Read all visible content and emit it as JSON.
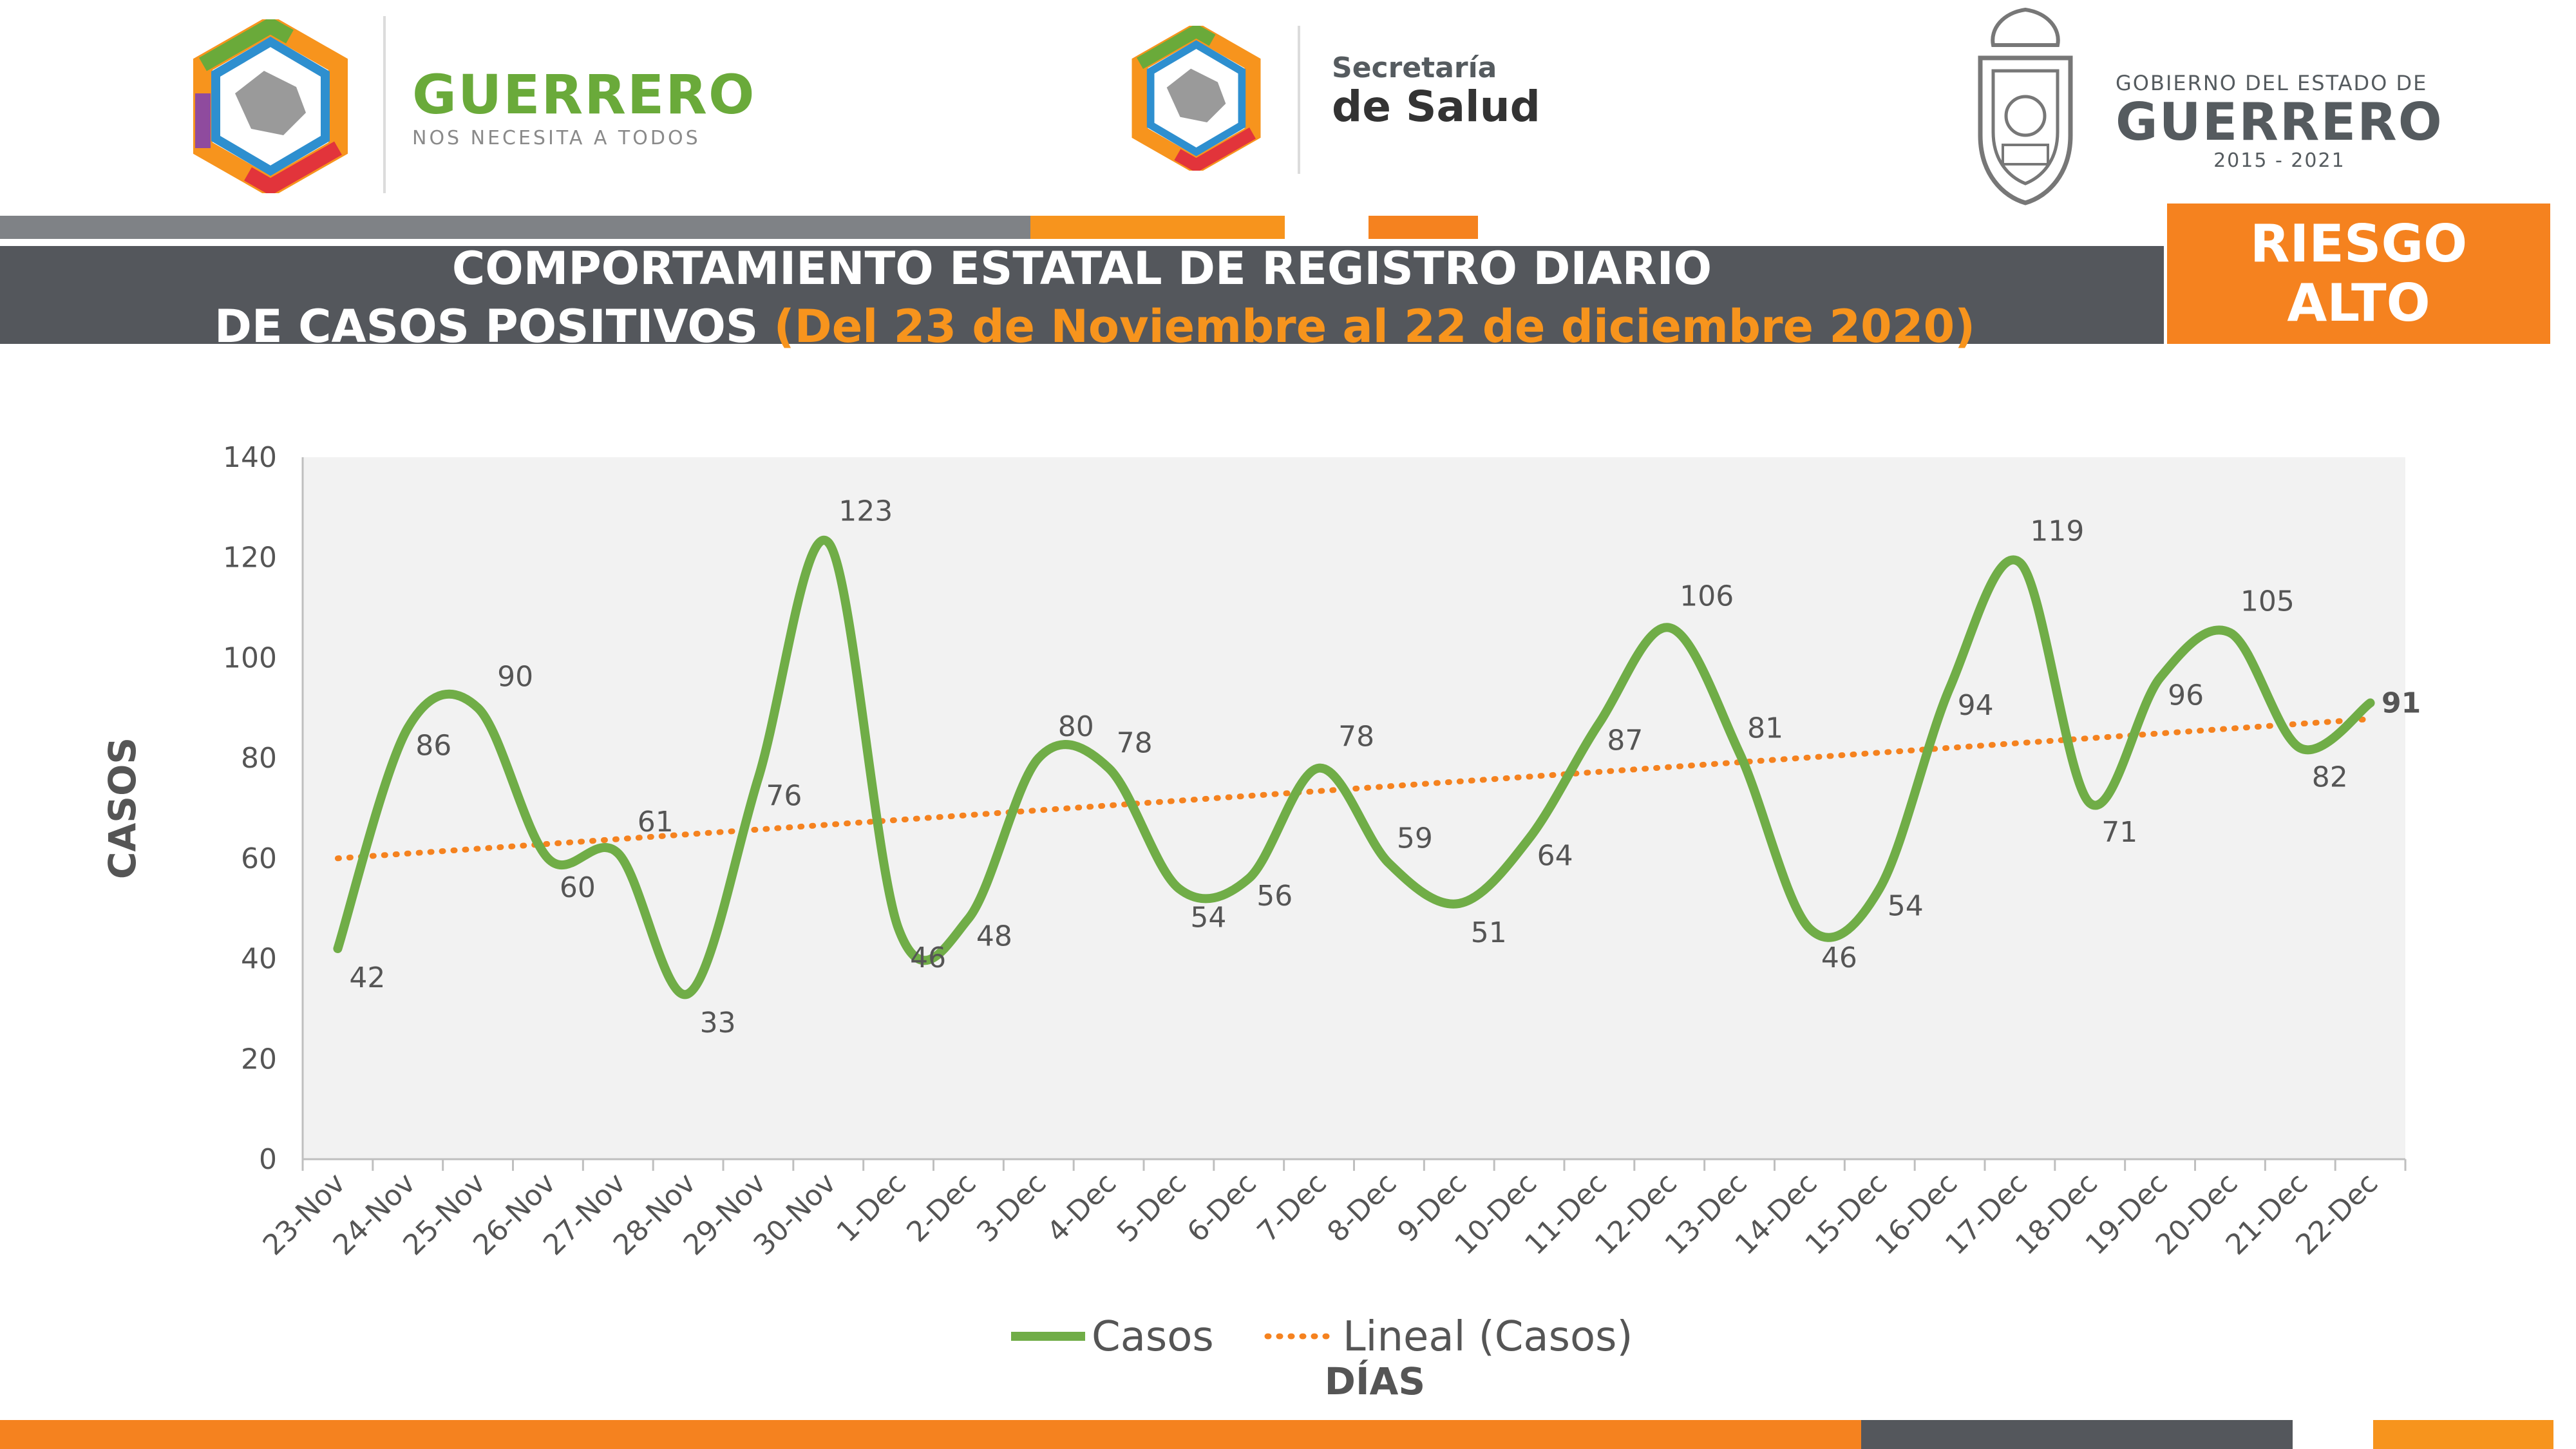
{
  "logos": {
    "left": {
      "title": "GUERRERO",
      "subtitle": "NOS NECESITA A TODOS"
    },
    "center": {
      "line1": "Secretaría",
      "line2": "de Salud"
    },
    "right": {
      "line1": "GOBIERNO DEL ESTADO DE",
      "line2": "GUERRERO",
      "line3": "2015 - 2021"
    }
  },
  "header": {
    "line1": "COMPORTAMIENTO ESTATAL DE REGISTRO DIARIO",
    "line2_white": "DE CASOS POSITIVOS ",
    "line2_orange": "(Del 23 de Noviembre al 22 de diciembre 2020)"
  },
  "riesgo": {
    "line1": "RIESGO",
    "line2": "ALTO"
  },
  "colors": {
    "series": "#70ad47",
    "trend": "#f5821f",
    "header_band": "#54575c",
    "riesgo_bg": "#f5821f",
    "plot_bg": "#f2f2f2"
  },
  "chart_data": {
    "type": "line",
    "categories": [
      "23-Nov",
      "24-Nov",
      "25-Nov",
      "26-Nov",
      "27-Nov",
      "28-Nov",
      "29-Nov",
      "30-Nov",
      "1-Dec",
      "2-Dec",
      "3-Dec",
      "4-Dec",
      "5-Dec",
      "6-Dec",
      "7-Dec",
      "8-Dec",
      "9-Dec",
      "10-Dec",
      "11-Dec",
      "12-Dec",
      "13-Dec",
      "14-Dec",
      "15-Dec",
      "16-Dec",
      "17-Dec",
      "18-Dec",
      "19-Dec",
      "20-Dec",
      "21-Dec",
      "22-Dec"
    ],
    "series": [
      {
        "name": "Casos",
        "values": [
          42,
          86,
          90,
          60,
          61,
          33,
          76,
          123,
          46,
          48,
          80,
          78,
          54,
          56,
          78,
          59,
          51,
          64,
          87,
          106,
          81,
          46,
          54,
          94,
          119,
          71,
          96,
          105,
          82,
          91
        ]
      }
    ],
    "trendline": {
      "name": "Lineal (Casos)",
      "type": "linear"
    },
    "xlabel": "DÍAS",
    "ylabel": "CASOS",
    "yticks": [
      0,
      20,
      40,
      60,
      80,
      100,
      120,
      140
    ],
    "ylim": [
      0,
      140
    ],
    "grid": false,
    "legend": "bottom"
  }
}
